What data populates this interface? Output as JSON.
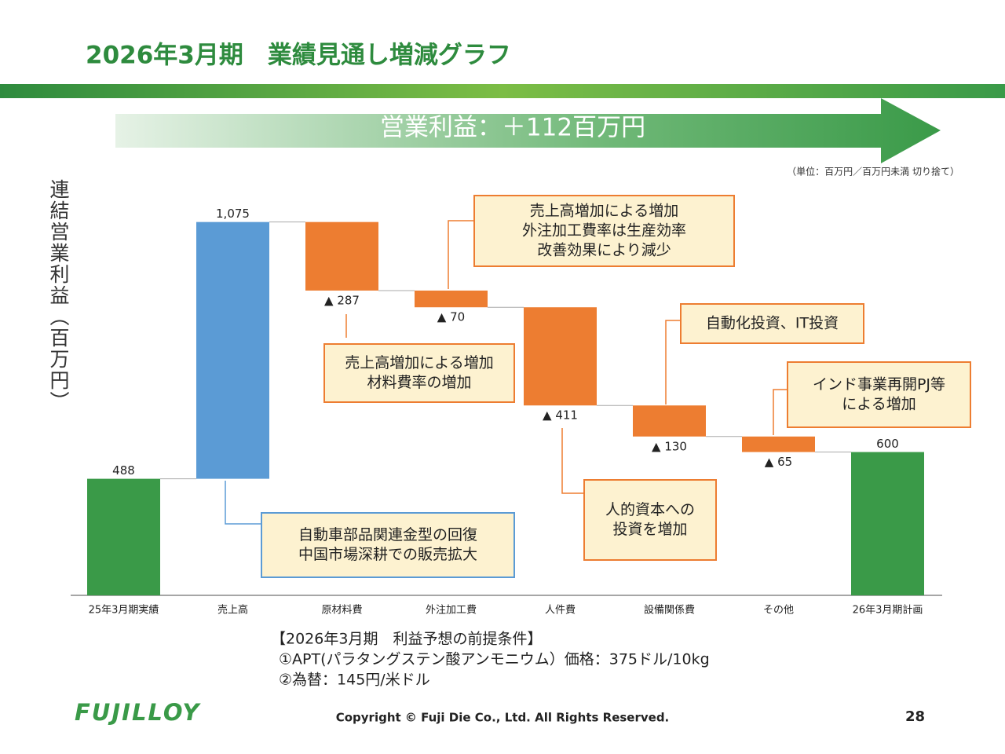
{
  "title": "2026年3月期　業績見通し増減グラフ",
  "banner": "営業利益：＋112百万円",
  "unit_note": "（単位：百万円／百万円未満 切り捨て）",
  "conditions": [
    "【2026年3月期　利益予想の前提条件】",
    "①APT(パラタングステン酸アンモニウム）価格：375ドル/10kg",
    "②為替：145円/米ドル"
  ],
  "footer": {
    "logo": "FUJILLOY",
    "copyright": "Copyright © Fuji Die Co., Ltd. All Rights Reserved.",
    "page": "28"
  },
  "chart_data": {
    "type": "waterfall",
    "y_label": "連結営業利益（百万円）",
    "categories": [
      "25年3月期実績",
      "売上高",
      "原材料費",
      "外注加工費",
      "人件費",
      "設備関係費",
      "その他",
      "26年3月期計画"
    ],
    "values": [
      488,
      1075,
      -287,
      -70,
      -411,
      -130,
      -65,
      600
    ],
    "value_labels": [
      "488",
      "1,075",
      "▲ 287",
      "▲ 70",
      "▲ 411",
      "▲ 130",
      "▲ 65",
      "600"
    ],
    "measure": [
      "absolute",
      "relative",
      "relative",
      "relative",
      "relative",
      "relative",
      "relative",
      "absolute"
    ],
    "colors": [
      "#3a9a48",
      "#5b9bd5",
      "#ed7d31",
      "#ed7d31",
      "#ed7d31",
      "#ed7d31",
      "#ed7d31",
      "#3a9a48"
    ],
    "ylim": [
      0,
      1700
    ],
    "annotations": [
      {
        "lines": [
          "自動車部品関連金型の回復",
          "中国市場深耕での販売拡大"
        ],
        "color": "#5b9bd5"
      },
      {
        "lines": [
          "売上高増加による増加",
          "材料費率の増加"
        ],
        "color": "#ed7d31"
      },
      {
        "lines": [
          "売上高増加による増加",
          "外注加工費率は生産効率",
          "改善効果により減少"
        ],
        "color": "#ed7d31"
      },
      {
        "lines": [
          "自動化投資、IT投資"
        ],
        "color": "#ed7d31"
      },
      {
        "lines": [
          "インド事業再開PJ等",
          "による増加"
        ],
        "color": "#ed7d31"
      },
      {
        "lines": [
          "人的資本への",
          "投資を増加"
        ],
        "color": "#ed7d31"
      }
    ]
  }
}
